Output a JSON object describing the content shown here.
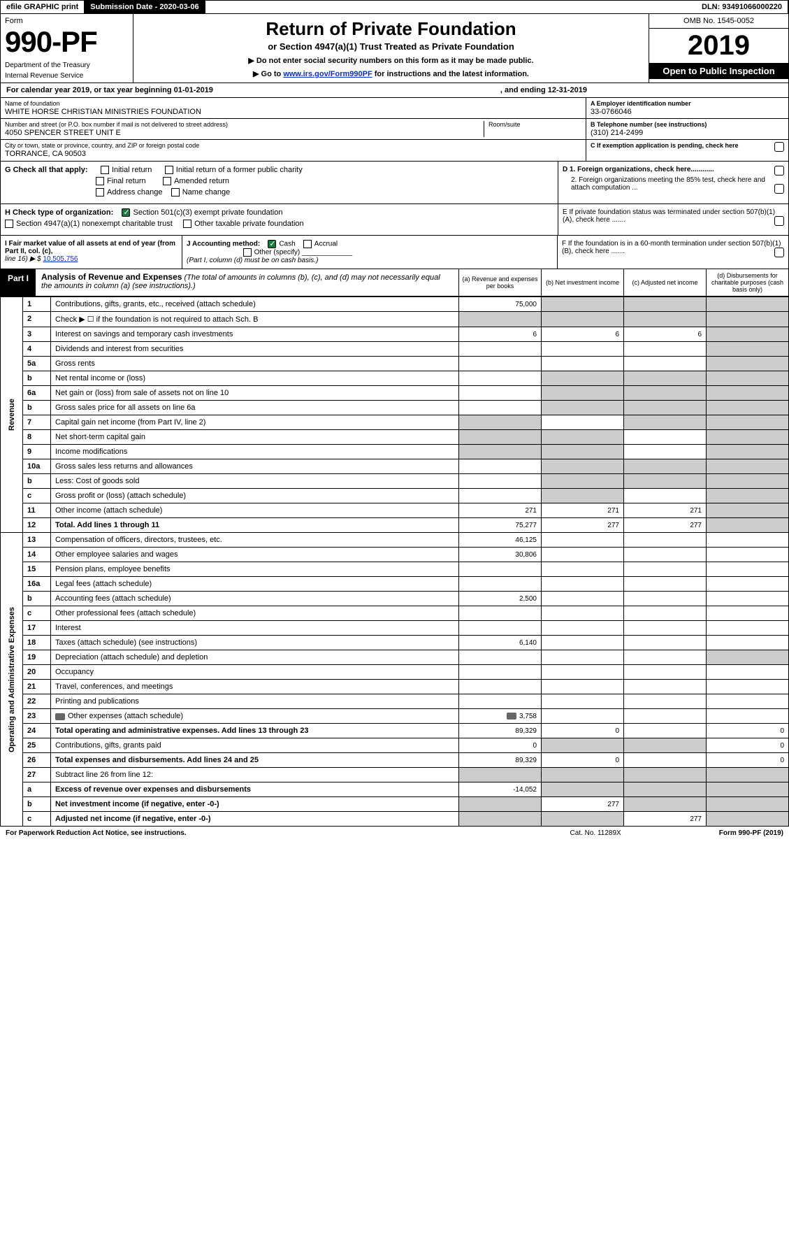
{
  "topBar": {
    "efile": "efile GRAPHIC print",
    "submission": "Submission Date - 2020-03-06",
    "dln": "DLN: 93491066000220"
  },
  "header": {
    "formWord": "Form",
    "formNumber": "990-PF",
    "dept1": "Department of the Treasury",
    "dept2": "Internal Revenue Service",
    "titleMain": "Return of Private Foundation",
    "titleSub": "or Section 4947(a)(1) Trust Treated as Private Foundation",
    "note1": "▶ Do not enter social security numbers on this form as it may be made public.",
    "note2_pre": "▶ Go to ",
    "note2_link": "www.irs.gov/Form990PF",
    "note2_post": " for instructions and the latest information.",
    "omb": "OMB No. 1545-0052",
    "year": "2019",
    "openPublic": "Open to Public Inspection"
  },
  "calYear": {
    "text": "For calendar year 2019, or tax year beginning 01-01-2019",
    "ending": ", and ending 12-31-2019"
  },
  "entity": {
    "nameLabel": "Name of foundation",
    "nameVal": "WHITE HORSE CHRISTIAN MINISTRIES FOUNDATION",
    "addrLabel": "Number and street (or P.O. box number if mail is not delivered to street address)",
    "addrVal": "4050 SPENCER STREET UNIT E",
    "roomLabel": "Room/suite",
    "cityLabel": "City or town, state or province, country, and ZIP or foreign postal code",
    "cityVal": "TORRANCE, CA  90503",
    "einLabel": "A Employer identification number",
    "einVal": "33-0766046",
    "telLabel": "B Telephone number (see instructions)",
    "telVal": "(310) 214-2499",
    "cLabel": "C If exemption application is pending, check here"
  },
  "g": {
    "label": "G Check all that apply:",
    "initial": "Initial return",
    "initialFormer": "Initial return of a former public charity",
    "final": "Final return",
    "amended": "Amended return",
    "address": "Address change",
    "name": "Name change"
  },
  "d": {
    "d1": "D 1. Foreign organizations, check here............",
    "d2": "2. Foreign organizations meeting the 85% test, check here and attach computation ...",
    "e": "E  If private foundation status was terminated under section 507(b)(1)(A), check here .......",
    "f": "F  If the foundation is in a 60-month termination under section 507(b)(1)(B), check here ......."
  },
  "h": {
    "label": "H Check type of organization:",
    "opt1": "Section 501(c)(3) exempt private foundation",
    "opt2": "Section 4947(a)(1) nonexempt charitable trust",
    "opt3": "Other taxable private foundation"
  },
  "i": {
    "label": "I Fair market value of all assets at end of year (from Part II, col. (c),",
    "line16": "line 16) ▶ $",
    "val": "10,505,756"
  },
  "j": {
    "label": "J Accounting method:",
    "cash": "Cash",
    "accrual": "Accrual",
    "other": "Other (specify)",
    "note": "(Part I, column (d) must be on cash basis.)"
  },
  "part1": {
    "label": "Part I",
    "title": "Analysis of Revenue and Expenses",
    "titleNote": "(The total of amounts in columns (b), (c), and (d) may not necessarily equal the amounts in column (a) (see instructions).)",
    "colA": "(a)  Revenue and expenses per books",
    "colB": "(b)  Net investment income",
    "colC": "(c)  Adjusted net income",
    "colD": "(d)  Disbursements for charitable purposes (cash basis only)"
  },
  "sideRevenue": "Revenue",
  "sideExpenses": "Operating and Administrative Expenses",
  "rows": {
    "r1": {
      "n": "1",
      "d": "Contributions, gifts, grants, etc., received (attach schedule)",
      "a": "75,000",
      "b": "",
      "c": "",
      "shB": true,
      "shC": true,
      "shD": true
    },
    "r2": {
      "n": "2",
      "d": "Check ▶ ☐ if the foundation is not required to attach Sch. B",
      "a": "",
      "b": "",
      "c": "",
      "shA": true,
      "shB": true,
      "shC": true,
      "shD": true
    },
    "r3": {
      "n": "3",
      "d": "Interest on savings and temporary cash investments",
      "a": "6",
      "b": "6",
      "c": "6",
      "shD": true
    },
    "r4": {
      "n": "4",
      "d": "Dividends and interest from securities",
      "a": "",
      "b": "",
      "c": "",
      "shD": true
    },
    "r5a": {
      "n": "5a",
      "d": "Gross rents",
      "a": "",
      "b": "",
      "c": "",
      "shD": true
    },
    "r5b": {
      "n": "b",
      "d": "Net rental income or (loss)",
      "a": "",
      "b": "",
      "c": "",
      "shA": false,
      "shB": true,
      "shC": true,
      "shD": true
    },
    "r6a": {
      "n": "6a",
      "d": "Net gain or (loss) from sale of assets not on line 10",
      "a": "",
      "shB": true,
      "shC": true,
      "shD": true
    },
    "r6b": {
      "n": "b",
      "d": "Gross sales price for all assets on line 6a",
      "a": "",
      "shA": false,
      "shB": true,
      "shC": true,
      "shD": true
    },
    "r7": {
      "n": "7",
      "d": "Capital gain net income (from Part IV, line 2)",
      "a": "",
      "b": "",
      "shA": true,
      "shC": true,
      "shD": true
    },
    "r8": {
      "n": "8",
      "d": "Net short-term capital gain",
      "a": "",
      "c": "",
      "shA": true,
      "shB": true,
      "shD": true
    },
    "r9": {
      "n": "9",
      "d": "Income modifications",
      "a": "",
      "c": "",
      "shA": true,
      "shB": true,
      "shD": true
    },
    "r10a": {
      "n": "10a",
      "d": "Gross sales less returns and allowances",
      "a": "",
      "shB": true,
      "shC": true,
      "shD": true
    },
    "r10b": {
      "n": "b",
      "d": "Less: Cost of goods sold",
      "a": "",
      "shB": true,
      "shC": true,
      "shD": true
    },
    "r10c": {
      "n": "c",
      "d": "Gross profit or (loss) (attach schedule)",
      "a": "",
      "c": "",
      "shB": true,
      "shD": true
    },
    "r11": {
      "n": "11",
      "d": "Other income (attach schedule)",
      "a": "271",
      "b": "271",
      "c": "271",
      "shD": true
    },
    "r12": {
      "n": "12",
      "d": "Total. Add lines 1 through 11",
      "a": "75,277",
      "b": "277",
      "c": "277",
      "shD": true,
      "bold": true
    },
    "r13": {
      "n": "13",
      "d": "Compensation of officers, directors, trustees, etc.",
      "a": "46,125"
    },
    "r14": {
      "n": "14",
      "d": "Other employee salaries and wages",
      "a": "30,806"
    },
    "r15": {
      "n": "15",
      "d": "Pension plans, employee benefits",
      "a": ""
    },
    "r16a": {
      "n": "16a",
      "d": "Legal fees (attach schedule)",
      "a": ""
    },
    "r16b": {
      "n": "b",
      "d": "Accounting fees (attach schedule)",
      "a": "2,500"
    },
    "r16c": {
      "n": "c",
      "d": "Other professional fees (attach schedule)",
      "a": ""
    },
    "r17": {
      "n": "17",
      "d": "Interest",
      "a": ""
    },
    "r18": {
      "n": "18",
      "d": "Taxes (attach schedule) (see instructions)",
      "a": "6,140"
    },
    "r19": {
      "n": "19",
      "d": "Depreciation (attach schedule) and depletion",
      "a": "",
      "shD": true
    },
    "r20": {
      "n": "20",
      "d": "Occupancy",
      "a": ""
    },
    "r21": {
      "n": "21",
      "d": "Travel, conferences, and meetings",
      "a": ""
    },
    "r22": {
      "n": "22",
      "d": "Printing and publications",
      "a": ""
    },
    "r23": {
      "n": "23",
      "d": "Other expenses (attach schedule)",
      "a": "3,758",
      "icon": true
    },
    "r24": {
      "n": "24",
      "d": "Total operating and administrative expenses. Add lines 13 through 23",
      "a": "89,329",
      "b": "0",
      "c": "",
      "dcol": "0",
      "bold": true
    },
    "r25": {
      "n": "25",
      "d": "Contributions, gifts, grants paid",
      "a": "0",
      "dcol": "0",
      "shB": true,
      "shC": true
    },
    "r26": {
      "n": "26",
      "d": "Total expenses and disbursements. Add lines 24 and 25",
      "a": "89,329",
      "b": "0",
      "c": "",
      "dcol": "0",
      "bold": true
    },
    "r27": {
      "n": "27",
      "d": "Subtract line 26 from line 12:",
      "shA": true,
      "shB": true,
      "shC": true,
      "shD": true
    },
    "r27a": {
      "n": "a",
      "d": "Excess of revenue over expenses and disbursements",
      "a": "-14,052",
      "shB": true,
      "shC": true,
      "shD": true,
      "bold": true
    },
    "r27b": {
      "n": "b",
      "d": "Net investment income (if negative, enter -0-)",
      "b": "277",
      "shA": true,
      "shC": true,
      "shD": true,
      "bold": true
    },
    "r27c": {
      "n": "c",
      "d": "Adjusted net income (if negative, enter -0-)",
      "c": "277",
      "shA": true,
      "shB": true,
      "shD": true,
      "bold": true
    }
  },
  "footer": {
    "pra": "For Paperwork Reduction Act Notice, see instructions.",
    "cat": "Cat. No. 11289X",
    "formref": "Form 990-PF (2019)"
  }
}
